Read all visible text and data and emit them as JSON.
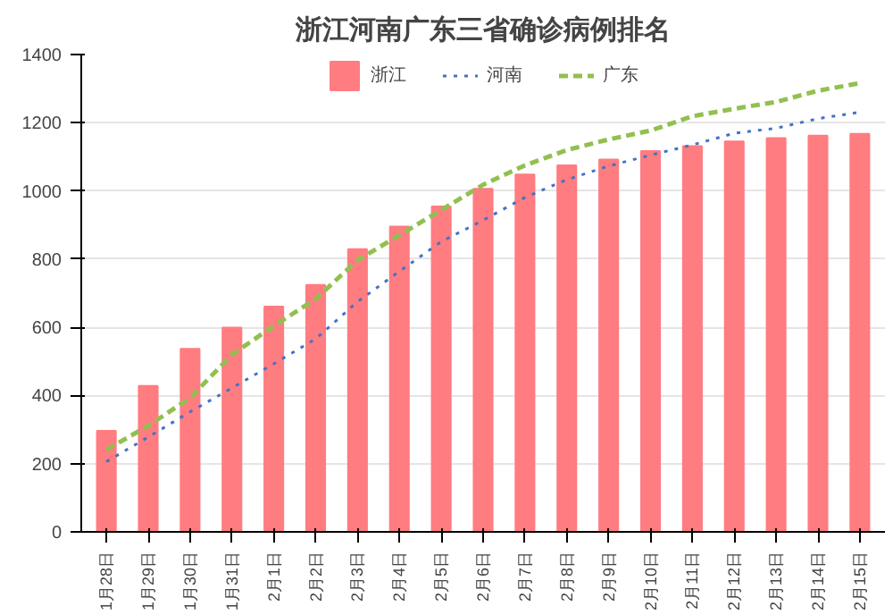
{
  "chart_data": {
    "type": "bar",
    "title": "浙江河南广东三省确诊病例排名",
    "categories": [
      "1月28日",
      "1月29日",
      "1月30日",
      "1月31日",
      "2月1日",
      "2月2日",
      "2月3日",
      "2月4日",
      "2月5日",
      "2月6日",
      "2月7日",
      "2月8日",
      "2月9日",
      "2月10日",
      "2月11日",
      "2月12日",
      "2月13日",
      "2月14日",
      "2月15日"
    ],
    "series": [
      {
        "name": "浙江",
        "color": "#ff7c80",
        "values": [
          296,
          428,
          537,
          599,
          661,
          724,
          829,
          895,
          954,
          1006,
          1048,
          1075,
          1092,
          1117,
          1131,
          1145,
          1155,
          1162,
          1167
        ]
      },
      {
        "name": "河南",
        "type": "line",
        "line_style": "dotted",
        "color": "#4472c4",
        "values": [
          206,
          278,
          352,
          422,
          493,
          566,
          675,
          764,
          851,
          914,
          981,
          1033,
          1073,
          1105,
          1135,
          1169,
          1184,
          1212,
          1231
        ]
      },
      {
        "name": "广东",
        "type": "line",
        "line_style": "dashed",
        "color": "#92c050",
        "values": [
          241,
          311,
          393,
          520,
          604,
          683,
          797,
          870,
          944,
          1018,
          1075,
          1120,
          1151,
          1177,
          1219,
          1241,
          1261,
          1294,
          1316
        ]
      }
    ],
    "ylim": [
      0,
      1400
    ],
    "yticks": [
      0,
      200,
      400,
      600,
      800,
      1000,
      1200,
      1400
    ],
    "grid": "y",
    "legend": "top"
  }
}
